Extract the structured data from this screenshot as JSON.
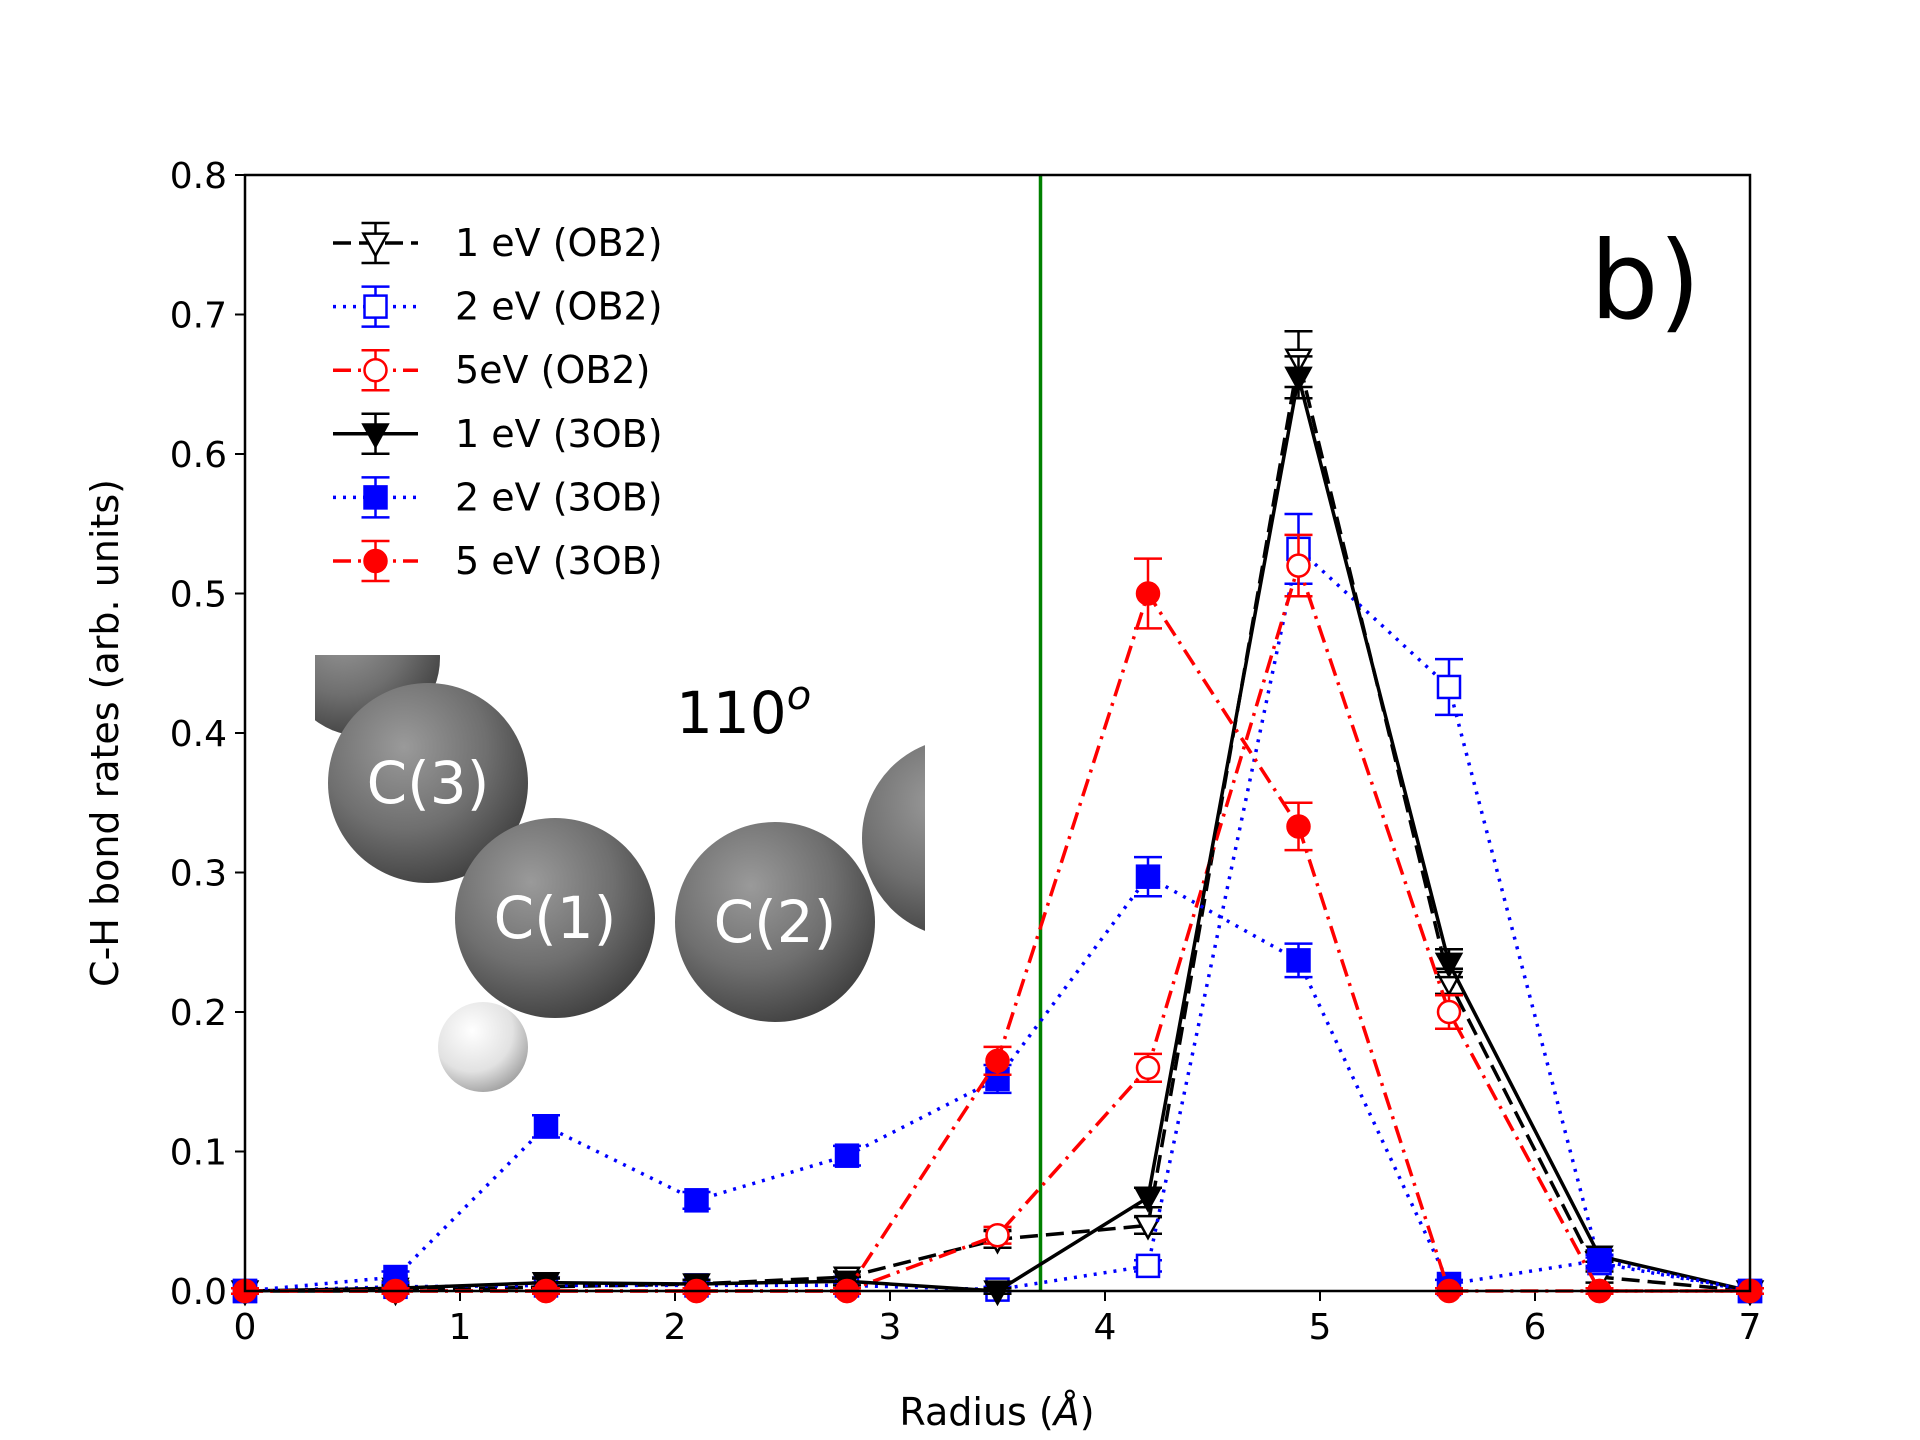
{
  "panel_label": "b)",
  "inset": {
    "angle_text": "110",
    "angle_sup": "o",
    "atoms": [
      {
        "label": "",
        "kind": "carbon-partial"
      },
      {
        "label": "C(3)",
        "kind": "carbon"
      },
      {
        "label": "C(1)",
        "kind": "carbon"
      },
      {
        "label": "C(2)",
        "kind": "carbon"
      },
      {
        "label": "",
        "kind": "carbon-partial"
      },
      {
        "label": "",
        "kind": "hydrogen"
      }
    ]
  },
  "colors": {
    "black": "#000000",
    "blue": "#0000ff",
    "red": "#ff0000",
    "green": "#008000"
  },
  "chart_data": {
    "type": "line",
    "title": "",
    "xlabel": "Radius (",
    "xlabel_unit": "Å",
    "xlabel_close": ")",
    "ylabel": "C-H bond rates (arb. units)",
    "xlim": [
      0,
      7
    ],
    "ylim": [
      0,
      0.8
    ],
    "xticks": [
      0,
      1,
      2,
      3,
      4,
      5,
      6,
      7
    ],
    "xtick_labels": [
      "0",
      "1",
      "2",
      "3",
      "4",
      "5",
      "6",
      "7"
    ],
    "yticks": [
      0,
      0.1,
      0.2,
      0.3,
      0.4,
      0.5,
      0.6,
      0.7,
      0.8
    ],
    "ytick_labels": [
      "0.0",
      "0.1",
      "0.2",
      "0.3",
      "0.4",
      "0.5",
      "0.6",
      "0.7",
      "0.8"
    ],
    "grid": false,
    "legend_position": "top-left",
    "vertical_line": {
      "x": 3.7,
      "color": "#008000"
    },
    "x": [
      0,
      0.7,
      1.4,
      2.1,
      2.8,
      3.5,
      4.2,
      4.9,
      5.6,
      6.3,
      7.0
    ],
    "series": [
      {
        "name": "1 eV (OB2)",
        "color": "#000000",
        "dash": "dashed",
        "marker": "triangle-down",
        "filled": false,
        "values": [
          0.0,
          0.0,
          0.003,
          0.005,
          0.01,
          0.037,
          0.047,
          0.668,
          0.222,
          0.01,
          0.0
        ],
        "errors": [
          0.002,
          0.002,
          0.003,
          0.003,
          0.004,
          0.006,
          0.006,
          0.02,
          0.009,
          0.004,
          0.002
        ]
      },
      {
        "name": "2 eV (OB2)",
        "color": "#0000ff",
        "dash": "dotted",
        "marker": "square",
        "filled": false,
        "values": [
          0.0,
          0.003,
          0.004,
          0.004,
          0.004,
          0.001,
          0.018,
          0.532,
          0.433,
          0.02,
          0.0
        ],
        "errors": [
          0.002,
          0.002,
          0.002,
          0.002,
          0.002,
          0.002,
          0.004,
          0.025,
          0.02,
          0.004,
          0.002
        ]
      },
      {
        "name": "5eV (OB2)",
        "color": "#ff0000",
        "dash": "dashdot",
        "marker": "circle",
        "filled": false,
        "values": [
          0.0,
          0.0,
          0.0,
          0.0,
          0.0,
          0.04,
          0.16,
          0.52,
          0.2,
          0.0,
          0.0
        ],
        "errors": [
          0.002,
          0.002,
          0.002,
          0.002,
          0.002,
          0.006,
          0.01,
          0.022,
          0.012,
          0.002,
          0.002
        ]
      },
      {
        "name": "1 eV (3OB)",
        "color": "#000000",
        "dash": "solid",
        "marker": "triangle-down",
        "filled": true,
        "values": [
          0.0,
          0.002,
          0.006,
          0.005,
          0.007,
          0.0,
          0.067,
          0.655,
          0.235,
          0.025,
          0.0
        ],
        "errors": [
          0.002,
          0.002,
          0.003,
          0.003,
          0.003,
          0.002,
          0.007,
          0.015,
          0.01,
          0.004,
          0.002
        ]
      },
      {
        "name": "2 eV (3OB)",
        "color": "#0000ff",
        "dash": "dotted",
        "marker": "square",
        "filled": true,
        "values": [
          0.0,
          0.01,
          0.118,
          0.065,
          0.097,
          0.152,
          0.297,
          0.237,
          0.005,
          0.022,
          0.0
        ],
        "errors": [
          0.002,
          0.004,
          0.008,
          0.006,
          0.007,
          0.01,
          0.014,
          0.012,
          0.003,
          0.004,
          0.002
        ]
      },
      {
        "name": "5 eV (3OB)",
        "color": "#ff0000",
        "dash": "dashdot",
        "marker": "circle",
        "filled": true,
        "values": [
          0.0,
          0.0,
          0.0,
          0.0,
          0.0,
          0.165,
          0.5,
          0.333,
          0.0,
          0.0,
          0.0
        ],
        "errors": [
          0.002,
          0.002,
          0.002,
          0.002,
          0.002,
          0.01,
          0.025,
          0.017,
          0.002,
          0.002,
          0.002
        ]
      }
    ]
  }
}
